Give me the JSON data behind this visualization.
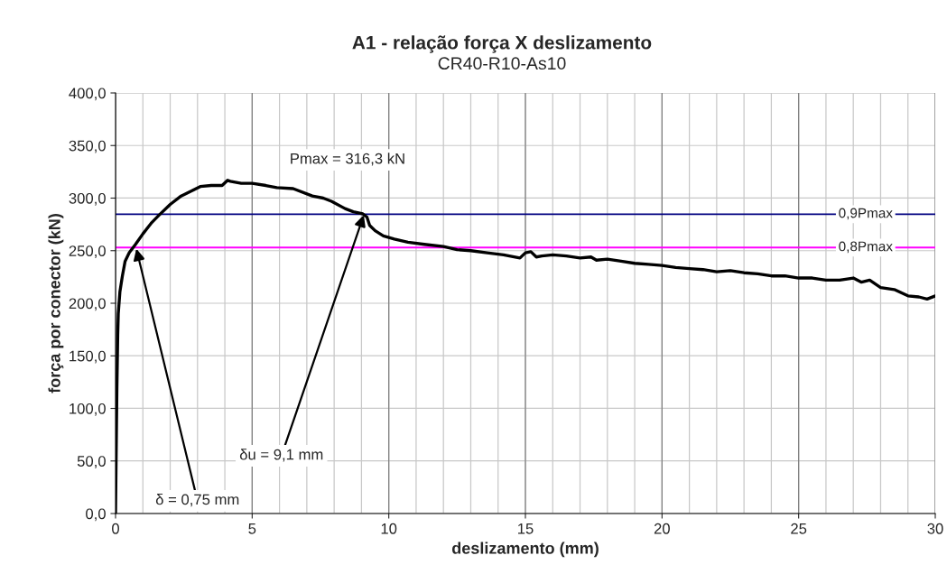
{
  "chart_data": {
    "type": "line",
    "title": "A1 - relação força X deslizamento",
    "subtitle": "CR40-R10-As10",
    "xlabel": "deslizamento (mm)",
    "ylabel": "força por conector (kN)",
    "xlim": [
      0,
      30
    ],
    "xticks": [
      0,
      5,
      10,
      15,
      20,
      25,
      30
    ],
    "ylim": [
      0,
      400
    ],
    "yticks": [
      {
        "value": 0,
        "label": "0,0"
      },
      {
        "value": 50,
        "label": "50,0"
      },
      {
        "value": 100,
        "label": "100,0"
      },
      {
        "value": 150,
        "label": "150,0"
      },
      {
        "value": 200,
        "label": "200,0"
      },
      {
        "value": 250,
        "label": "250,0"
      },
      {
        "value": 300,
        "label": "300,0"
      },
      {
        "value": 350,
        "label": "350,0"
      },
      {
        "value": 400,
        "label": "400,0"
      }
    ],
    "grid": true,
    "legend": false,
    "marker": "none",
    "line_style": "solid",
    "series": [
      {
        "color": "#000000",
        "x": [
          0,
          0.02,
          0.05,
          0.08,
          0.1,
          0.16,
          0.25,
          0.35,
          0.5,
          0.73,
          1.0,
          1.3,
          1.6,
          2.0,
          2.4,
          2.8,
          3.1,
          3.5,
          3.9,
          4.1,
          4.2,
          4.6,
          5.0,
          5.5,
          5.9,
          6.5,
          7.2,
          7.6,
          7.9,
          8.4,
          8.7,
          9.05,
          9.2,
          9.3,
          9.5,
          9.8,
          10.2,
          10.7,
          11.3,
          12.0,
          12.5,
          13.0,
          13.6,
          14.2,
          14.8,
          15.0,
          15.2,
          15.4,
          15.6,
          16.0,
          16.5,
          17.0,
          17.4,
          17.6,
          18.0,
          18.5,
          19.0,
          19.5,
          20.0,
          20.5,
          21.0,
          21.5,
          22.0,
          22.5,
          23.0,
          23.5,
          24.0,
          24.5,
          25.0,
          25.5,
          26.0,
          26.5,
          27.0,
          27.3,
          27.6,
          28.0,
          28.5,
          29.0,
          29.4,
          29.7,
          30.0
        ],
        "values": [
          0,
          50,
          120,
          170,
          190,
          211,
          226,
          240,
          248,
          256,
          266,
          276,
          284,
          294,
          302,
          307,
          311,
          312,
          312,
          317,
          316,
          314,
          314,
          312,
          310,
          309,
          302,
          300,
          297,
          290,
          287,
          285,
          282,
          274,
          269,
          264,
          261,
          258,
          256,
          254,
          251,
          250,
          248,
          246,
          243,
          248,
          249,
          244,
          245,
          246,
          245,
          243,
          244,
          241,
          242,
          240,
          238,
          237,
          236,
          234,
          233,
          232,
          230,
          231,
          229,
          228,
          226,
          226,
          224,
          224,
          222,
          222,
          224,
          220,
          222,
          215,
          213,
          207,
          206,
          204,
          207
        ]
      }
    ],
    "ref_lines": [
      {
        "axis": "y",
        "value": 284.7,
        "label": "0,9Pmax",
        "color": "#000080",
        "line_style": "solid"
      },
      {
        "axis": "y",
        "value": 253.0,
        "label": "0,8Pmax",
        "color": "#ff00ff",
        "line_style": "solid"
      }
    ],
    "annotations": [
      "Pmax = 316,3 kN",
      {
        "text": "δu = 9,1 mm",
        "x": 9.1,
        "y": 285
      },
      {
        "text": "δ = 0,75 mm",
        "x": 0.75,
        "y": 253
      }
    ]
  }
}
